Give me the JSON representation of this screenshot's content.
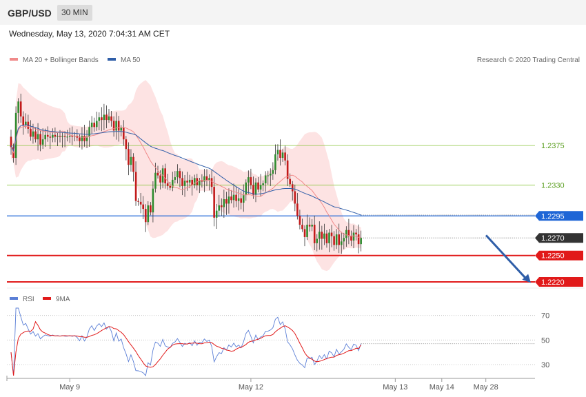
{
  "header": {
    "symbol": "GBP/USD",
    "timeframe": "30 MIN",
    "timestamp": "Wednesday, May 13, 2020 7:04:31 AM CET"
  },
  "chart_data": [
    {
      "type": "candlestick",
      "legend": [
        {
          "label": "MA 20 + Bollinger Bands",
          "color": "#f08a8a"
        },
        {
          "label": "MA 50",
          "color": "#2f5ea8"
        }
      ],
      "credit": "Research © 2020 Trading Central",
      "ylim": [
        1.2213,
        1.2462
      ],
      "levels": [
        {
          "label": "1.2375",
          "value": 1.2375,
          "color": "#8cc63f",
          "style": "thin"
        },
        {
          "label": "1.2330",
          "value": 1.233,
          "color": "#8cc63f",
          "style": "thin"
        },
        {
          "label": "1.2295",
          "value": 1.2295,
          "color": "#1f66d6",
          "style": "line"
        },
        {
          "label": "1.2270",
          "value": 1.227,
          "color": "#333333",
          "style": "current"
        },
        {
          "label": "1.2250",
          "value": 1.225,
          "color": "#e11a1a",
          "style": "thick"
        },
        {
          "label": "1.2220",
          "value": 1.222,
          "color": "#e11a1a",
          "style": "thick"
        }
      ],
      "forecast_arrow": {
        "from": 1.2273,
        "to": 1.2219,
        "color": "#2f5ea8"
      },
      "close": [
        1.2373,
        1.2361,
        1.2412,
        1.2425,
        1.2408,
        1.2398,
        1.2402,
        1.2394,
        1.2385,
        1.2391,
        1.2382,
        1.2388,
        1.2376,
        1.2382,
        1.2387,
        1.2385,
        1.2384,
        1.2387,
        1.2385,
        1.2386,
        1.2385,
        1.2386,
        1.2385,
        1.2385,
        1.2386,
        1.2385,
        1.2386,
        1.2384,
        1.238,
        1.2386,
        1.238,
        1.2385,
        1.2396,
        1.2401,
        1.2396,
        1.2403,
        1.2407,
        1.2404,
        1.241,
        1.2404,
        1.2408,
        1.2403,
        1.2392,
        1.2403,
        1.2392,
        1.2395,
        1.2382,
        1.2371,
        1.2353,
        1.2362,
        1.2345,
        1.2312,
        1.2311,
        1.2308,
        1.2303,
        1.2288,
        1.2307,
        1.2299,
        1.2326,
        1.2344,
        1.2341,
        1.2333,
        1.2349,
        1.2332,
        1.2329,
        1.2327,
        1.2336,
        1.2339,
        1.2346,
        1.2338,
        1.2329,
        1.2335,
        1.2333,
        1.2336,
        1.233,
        1.2338,
        1.233,
        1.2335,
        1.2334,
        1.234,
        1.2336,
        1.2338,
        1.2328,
        1.2293,
        1.2301,
        1.2307,
        1.2305,
        1.2314,
        1.2309,
        1.2317,
        1.2313,
        1.2319,
        1.2312,
        1.2315,
        1.231,
        1.2319,
        1.2333,
        1.2339,
        1.233,
        1.2319,
        1.2333,
        1.2325,
        1.233,
        1.2332,
        1.2341,
        1.2341,
        1.2343,
        1.2347,
        1.2365,
        1.237,
        1.2361,
        1.2367,
        1.2358,
        1.2337,
        1.2331,
        1.2323,
        1.2309,
        1.2295,
        1.2285,
        1.228,
        1.2271,
        1.2285,
        1.2283,
        1.2285,
        1.2264,
        1.2269,
        1.2277,
        1.2269,
        1.2275,
        1.2264,
        1.2276,
        1.2272,
        1.2262,
        1.2274,
        1.2262,
        1.2266,
        1.227,
        1.2279,
        1.2272,
        1.2267,
        1.2276,
        1.2274,
        1.2263,
        1.227
      ],
      "ma50_ends": [
        1.2375,
        1.2296
      ],
      "rsi": {
        "legend": [
          {
            "label": "RSI",
            "color": "#5b7fd6"
          },
          {
            "label": "9MA",
            "color": "#e11a1a"
          }
        ],
        "ylim": [
          21,
          76
        ],
        "ticks": [
          "70",
          "50",
          "30"
        ],
        "rsi_last": 47,
        "ma_last": 46
      },
      "x_ticks": [
        "May 9",
        "May 12",
        "May 13",
        "May 14",
        "May 28"
      ],
      "x_tick_index": [
        24,
        98,
        157,
        176,
        194
      ]
    }
  ]
}
